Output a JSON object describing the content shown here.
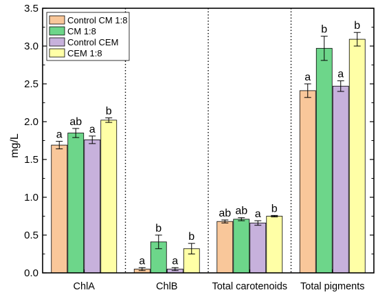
{
  "chart_data": {
    "type": "bar",
    "title": "",
    "xlabel": "",
    "ylabel": "mg/L",
    "ylim": [
      0,
      3.5
    ],
    "yticks": [
      "0.0",
      "0.5",
      "1.0",
      "1.5",
      "2.0",
      "2.5",
      "3.0",
      "3.5"
    ],
    "categories": [
      "ChlA",
      "ChlB",
      "Total carotenoids",
      "Total pigments"
    ],
    "legend_position": "top-left",
    "group_separators": "dotted vertical lines",
    "series": [
      {
        "name": "Control CM 1:8",
        "color": "#F9C79A",
        "values": [
          1.69,
          0.05,
          0.68,
          2.41
        ],
        "errors": [
          0.05,
          0.02,
          0.02,
          0.09
        ],
        "letters": [
          "a",
          "a",
          "ab",
          "a"
        ]
      },
      {
        "name": "CM 1:8",
        "color": "#6DD68A",
        "values": [
          1.85,
          0.41,
          0.71,
          2.97
        ],
        "errors": [
          0.06,
          0.09,
          0.02,
          0.16
        ],
        "letters": [
          "ab",
          "b",
          "ab",
          "b"
        ]
      },
      {
        "name": "Control CEM",
        "color": "#C7B1DC",
        "values": [
          1.76,
          0.05,
          0.66,
          2.47
        ],
        "errors": [
          0.05,
          0.02,
          0.03,
          0.07
        ],
        "letters": [
          "a",
          "a",
          "a",
          "a"
        ]
      },
      {
        "name": "CEM 1:8",
        "color": "#FFFFA6",
        "values": [
          2.02,
          0.32,
          0.75,
          3.09
        ],
        "errors": [
          0.03,
          0.07,
          0.01,
          0.09
        ],
        "letters": [
          "b",
          "b",
          "b",
          "b"
        ]
      }
    ]
  }
}
